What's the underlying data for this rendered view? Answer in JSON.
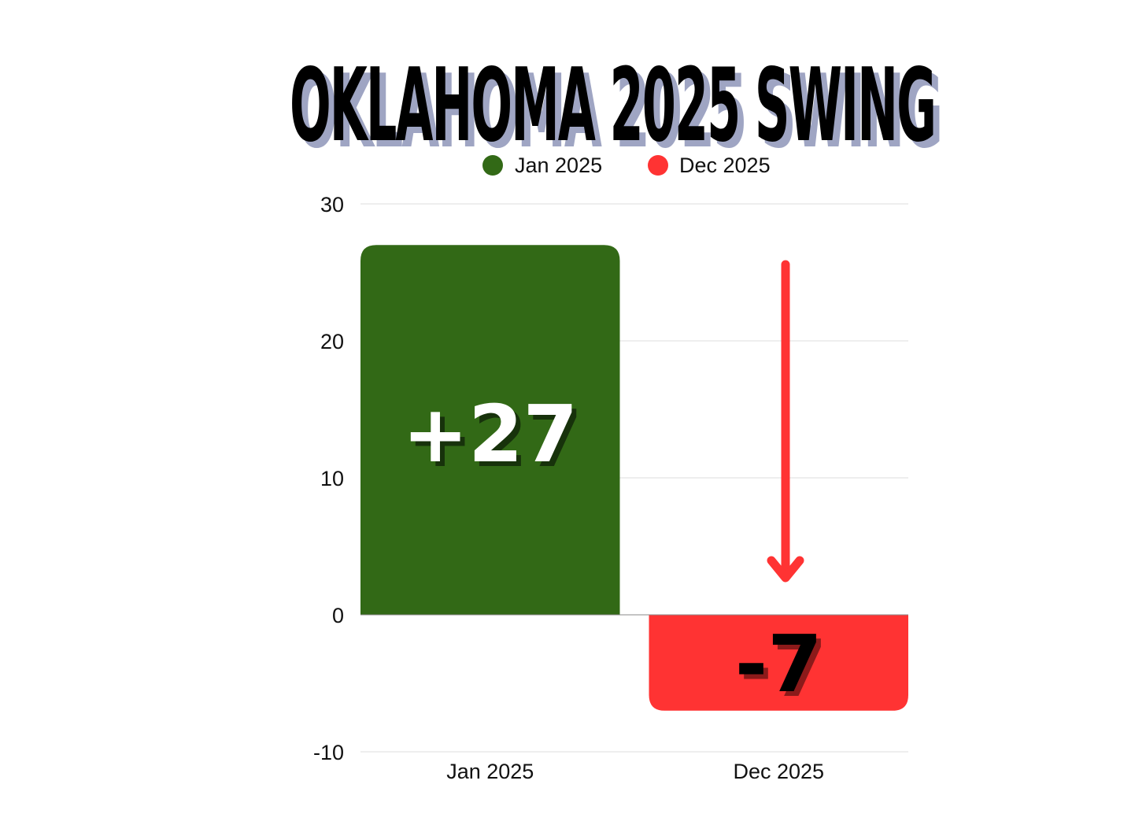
{
  "chart_data": {
    "type": "bar",
    "title": "OKLAHOMA 2025 SWING",
    "categories": [
      "Jan 2025",
      "Dec 2025"
    ],
    "series": [
      {
        "name": "Jan 2025",
        "color": "#326916",
        "values": [
          27,
          null
        ]
      },
      {
        "name": "Dec 2025",
        "color": "#ff3333",
        "values": [
          null,
          -7
        ]
      }
    ],
    "values": [
      27,
      -7
    ],
    "data_labels": [
      "+27",
      "-7"
    ],
    "ylim": [
      -10,
      30
    ],
    "yticks": [
      30,
      20,
      10,
      0,
      -10
    ],
    "grid": true,
    "legend": "top-center",
    "annotation": {
      "type": "arrow",
      "direction": "down",
      "color": "#ff3333"
    },
    "xlabel": "",
    "ylabel": ""
  }
}
